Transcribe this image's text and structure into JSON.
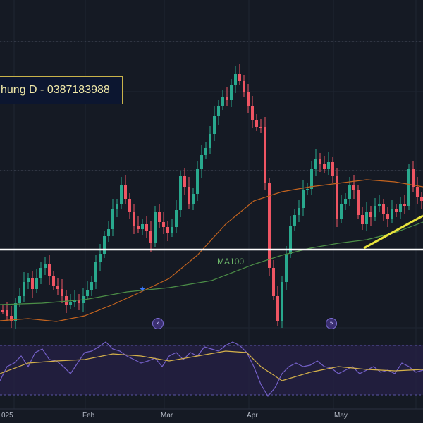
{
  "annotation": {
    "text": "hung D - 0387183988"
  },
  "indicators": {
    "ma100_label": "MA100"
  },
  "nav_buttons": [
    {
      "icon": "double-chevron-right-icon"
    },
    {
      "icon": "double-chevron-right-icon"
    }
  ],
  "time_axis": {
    "labels": [
      "025",
      "Feb",
      "Mar",
      "Apr",
      "May"
    ]
  },
  "colors": {
    "background": "#151a24",
    "up": "#29a98e",
    "down": "#ef5563",
    "ma_orange": "#c4641f",
    "ma100": "#4c8f47",
    "support_line": "#ffffff",
    "trend_line": "#e8e33c",
    "rsi": "#7460c8",
    "rsi_ma": "#d4b14a",
    "rsi_band": "#262046"
  },
  "chart_data": {
    "type": "candlestick",
    "x_labels": [
      "025",
      "Feb",
      "Mar",
      "Apr",
      "May"
    ],
    "indicators": [
      "MA100"
    ]
  }
}
